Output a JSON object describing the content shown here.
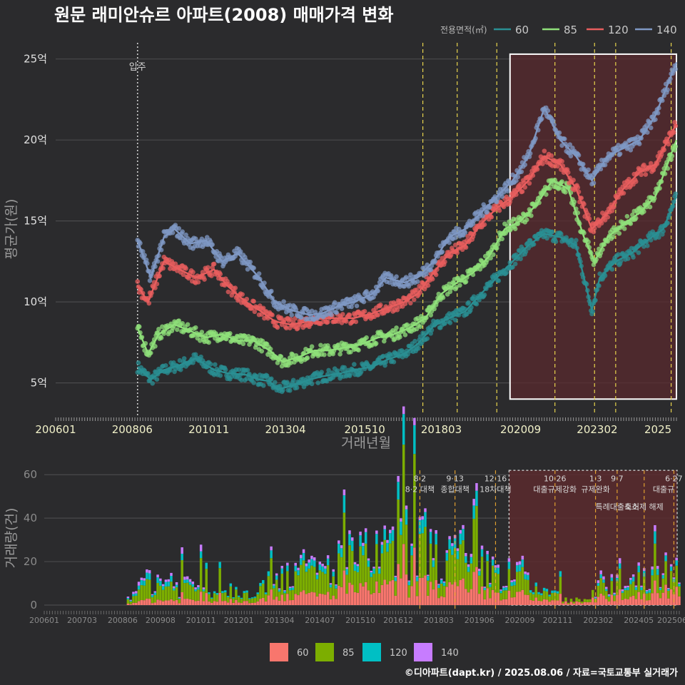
{
  "title": "원문 래미안슈르 아파트(2008) 매매가격 변화",
  "footer": "©디아파트(dapt.kr) / 2025.08.06 / 자료=국토교통부 실거래가",
  "colors": {
    "background": "#2b2b2d",
    "grid": "#4a4a4c",
    "policy_line": "#e8d44d",
    "highlight_fill": "#5a2a2e",
    "movein_line": "#d0d0d0"
  },
  "chart_data": [
    {
      "type": "line",
      "title": "원문 래미안슈르 아파트(2008) 매매가격 변화",
      "xlabel": "거래년월",
      "ylabel": "평균가(원)",
      "x_ticks": [
        "200601",
        "200806",
        "201011",
        "201304",
        "201510",
        "201803",
        "202009",
        "202302",
        "2025"
      ],
      "y_ticks": [
        "5억",
        "10억",
        "15억",
        "20억",
        "25억"
      ],
      "y_tick_values": [
        5,
        10,
        15,
        20,
        25
      ],
      "ylim": [
        3,
        26
      ],
      "xlim": [
        "2006-01",
        "2025-08"
      ],
      "legend_title": "전용면적(㎡)",
      "legend_position": "top-right",
      "move_in_label": "입주",
      "move_in_date": "2008-08",
      "policy_dates": [
        "2017-08",
        "2018-09",
        "2019-12",
        "2021-10",
        "2023-01",
        "2023-09",
        "2025-06"
      ],
      "highlight": {
        "from": "2020-05",
        "to": "2025-08",
        "ymin": 4,
        "ymax": 25.3
      },
      "series": [
        {
          "name": "60",
          "color": "#2a8f93",
          "points": [
            [
              "2008-08",
              6.0
            ],
            [
              "2009-01",
              5.2
            ],
            [
              "2009-06",
              5.8
            ],
            [
              "2009-12",
              6.1
            ],
            [
              "2010-06",
              6.5
            ],
            [
              "2011-01",
              5.8
            ],
            [
              "2011-06",
              5.6
            ],
            [
              "2012-01",
              5.5
            ],
            [
              "2012-06",
              5.2
            ],
            [
              "2012-10",
              5.1
            ],
            [
              "2013-01",
              4.6
            ],
            [
              "2013-06",
              4.8
            ],
            [
              "2014-01",
              5.2
            ],
            [
              "2014-06",
              5.4
            ],
            [
              "2015-01",
              5.6
            ],
            [
              "2015-06",
              5.8
            ],
            [
              "2016-01",
              6.0
            ],
            [
              "2016-06",
              6.4
            ],
            [
              "2017-01",
              6.8
            ],
            [
              "2017-06",
              7.4
            ],
            [
              "2017-12",
              8.5
            ],
            [
              "2018-06",
              9.0
            ],
            [
              "2018-12",
              9.4
            ],
            [
              "2019-06",
              10.5
            ],
            [
              "2019-12",
              11.5
            ],
            [
              "2020-06",
              12.5
            ],
            [
              "2020-12",
              13.5
            ],
            [
              "2021-06",
              14.2
            ],
            [
              "2021-12",
              14.0
            ],
            [
              "2022-06",
              13.5
            ],
            [
              "2022-12",
              9.5
            ],
            [
              "2023-03",
              11.5
            ],
            [
              "2023-09",
              12.5
            ],
            [
              "2024-03",
              13.0
            ],
            [
              "2024-09",
              13.8
            ],
            [
              "2025-03",
              14.5
            ],
            [
              "2025-08",
              16.5
            ]
          ]
        },
        {
          "name": "85",
          "color": "#8fe07a",
          "points": [
            [
              "2008-08",
              8.4
            ],
            [
              "2008-12",
              6.8
            ],
            [
              "2009-04",
              8.0
            ],
            [
              "2009-10",
              8.6
            ],
            [
              "2010-04",
              8.2
            ],
            [
              "2010-10",
              7.8
            ],
            [
              "2011-04",
              8.0
            ],
            [
              "2011-10",
              7.6
            ],
            [
              "2012-04",
              7.6
            ],
            [
              "2012-10",
              7.0
            ],
            [
              "2013-03",
              6.3
            ],
            [
              "2013-09",
              6.6
            ],
            [
              "2014-03",
              7.0
            ],
            [
              "2014-09",
              7.0
            ],
            [
              "2015-03",
              7.2
            ],
            [
              "2015-09",
              7.4
            ],
            [
              "2016-03",
              7.8
            ],
            [
              "2016-09",
              8.0
            ],
            [
              "2017-03",
              8.4
            ],
            [
              "2017-09",
              9.0
            ],
            [
              "2018-03",
              10.5
            ],
            [
              "2018-09",
              11.2
            ],
            [
              "2019-03",
              11.8
            ],
            [
              "2019-09",
              12.8
            ],
            [
              "2020-03",
              14.5
            ],
            [
              "2020-09",
              15.0
            ],
            [
              "2021-03",
              16.0
            ],
            [
              "2021-09",
              17.5
            ],
            [
              "2022-03",
              17.0
            ],
            [
              "2022-09",
              14.0
            ],
            [
              "2023-01",
              12.5
            ],
            [
              "2023-06",
              14.0
            ],
            [
              "2023-12",
              14.8
            ],
            [
              "2024-06",
              15.5
            ],
            [
              "2024-12",
              16.5
            ],
            [
              "2025-08",
              20.0
            ]
          ]
        },
        {
          "name": "120",
          "color": "#e85e5e",
          "points": [
            [
              "2008-08",
              11.0
            ],
            [
              "2008-12",
              10.0
            ],
            [
              "2009-06",
              12.5
            ],
            [
              "2009-12",
              12.0
            ],
            [
              "2010-06",
              11.5
            ],
            [
              "2011-01",
              12.0
            ],
            [
              "2011-06",
              11.0
            ],
            [
              "2012-01",
              10.0
            ],
            [
              "2012-06",
              9.5
            ],
            [
              "2012-12",
              8.8
            ],
            [
              "2013-06",
              8.6
            ],
            [
              "2014-01",
              8.8
            ],
            [
              "2014-06",
              9.0
            ],
            [
              "2015-01",
              9.0
            ],
            [
              "2015-06",
              9.0
            ],
            [
              "2016-01",
              9.3
            ],
            [
              "2016-06",
              9.6
            ],
            [
              "2017-01",
              10.0
            ],
            [
              "2017-06",
              10.5
            ],
            [
              "2017-12",
              11.8
            ],
            [
              "2018-06",
              13.0
            ],
            [
              "2018-12",
              13.5
            ],
            [
              "2019-06",
              14.8
            ],
            [
              "2019-12",
              15.8
            ],
            [
              "2020-06",
              16.5
            ],
            [
              "2020-12",
              17.5
            ],
            [
              "2021-06",
              19.0
            ],
            [
              "2021-12",
              18.5
            ],
            [
              "2022-06",
              17.0
            ],
            [
              "2022-12",
              14.5
            ],
            [
              "2023-06",
              15.5
            ],
            [
              "2023-12",
              17.0
            ],
            [
              "2024-06",
              18.0
            ],
            [
              "2024-12",
              18.5
            ],
            [
              "2025-08",
              21.0
            ]
          ]
        },
        {
          "name": "140",
          "color": "#7f98c4",
          "points": [
            [
              "2008-08",
              13.8
            ],
            [
              "2009-01",
              11.5
            ],
            [
              "2009-06",
              14.0
            ],
            [
              "2009-10",
              14.5
            ],
            [
              "2010-04",
              13.6
            ],
            [
              "2010-10",
              13.8
            ],
            [
              "2011-04",
              12.5
            ],
            [
              "2011-10",
              13.0
            ],
            [
              "2012-06",
              11.5
            ],
            [
              "2012-12",
              10.0
            ],
            [
              "2013-06",
              9.5
            ],
            [
              "2014-01",
              9.2
            ],
            [
              "2014-06",
              9.3
            ],
            [
              "2015-01",
              9.8
            ],
            [
              "2015-06",
              10.0
            ],
            [
              "2016-01",
              10.5
            ],
            [
              "2016-06",
              11.5
            ],
            [
              "2017-01",
              11.2
            ],
            [
              "2017-06",
              11.5
            ],
            [
              "2017-12",
              12.5
            ],
            [
              "2018-06",
              14.0
            ],
            [
              "2018-12",
              14.5
            ],
            [
              "2019-06",
              15.5
            ],
            [
              "2019-12",
              16.5
            ],
            [
              "2020-06",
              17.5
            ],
            [
              "2020-12",
              19.0
            ],
            [
              "2021-06",
              22.0
            ],
            [
              "2021-12",
              20.0
            ],
            [
              "2022-06",
              19.0
            ],
            [
              "2022-12",
              17.5
            ],
            [
              "2023-06",
              19.0
            ],
            [
              "2023-12",
              19.5
            ],
            [
              "2024-06",
              20.0
            ],
            [
              "2024-12",
              21.5
            ],
            [
              "2025-08",
              24.8
            ]
          ]
        }
      ]
    },
    {
      "type": "bar",
      "stacked": true,
      "xlabel": "",
      "ylabel": "거래량(건)",
      "x_ticks": [
        "200601",
        "200703",
        "200806",
        "200908",
        "201011",
        "201201",
        "201304",
        "201407",
        "201510",
        "201612",
        "201803",
        "201906",
        "202009",
        "202111",
        "202302",
        "202405",
        "202506"
      ],
      "y_ticks": [
        "0",
        "20",
        "40",
        "60"
      ],
      "y_tick_values": [
        0,
        20,
        40,
        60
      ],
      "ylim": [
        0,
        65
      ],
      "legend_position": "bottom",
      "legend": [
        "60",
        "85",
        "120",
        "140"
      ],
      "series_colors": [
        "#f8766d",
        "#7cae00",
        "#00bfc4",
        "#c77cff"
      ],
      "highlight": {
        "from": "2020-05",
        "to": "2025-08"
      },
      "policies": [
        {
          "date": "2017-08",
          "date_label": "8·2",
          "label": "8·2 대책"
        },
        {
          "date": "2018-09",
          "date_label": "9·13",
          "label": "종합대책"
        },
        {
          "date": "2019-12",
          "date_label": "12·16",
          "label": "18차대책"
        },
        {
          "date": "2021-10",
          "date_label": "10·26",
          "label": "대출규제강화"
        },
        {
          "date": "2023-01",
          "date_label": "1·3",
          "label": "규제완화"
        },
        {
          "date": "2023-09",
          "date_label": "9·7",
          "label": "특례대출축소"
        },
        {
          "date": "2024-07",
          "date_label": "",
          "label": "토허제 해제"
        },
        {
          "date": "2025-06",
          "date_label": "6·27",
          "label": "대출규"
        }
      ],
      "monthly_totals_note": "annual average monthly volume",
      "annual_volume": [
        {
          "year": 2008,
          "v60": 1,
          "v85": 3,
          "v120": 1,
          "v140": 1
        },
        {
          "year": 2009,
          "v60": 2,
          "v85": 6,
          "v120": 2,
          "v140": 1
        },
        {
          "year": 2010,
          "v60": 2,
          "v85": 5,
          "v120": 1,
          "v140": 1
        },
        {
          "year": 2011,
          "v60": 2,
          "v85": 4,
          "v120": 1,
          "v140": 0
        },
        {
          "year": 2012,
          "v60": 2,
          "v85": 4,
          "v120": 1,
          "v140": 0
        },
        {
          "year": 2013,
          "v60": 4,
          "v85": 8,
          "v120": 2,
          "v140": 1
        },
        {
          "year": 2014,
          "v60": 4,
          "v85": 8,
          "v120": 2,
          "v140": 1
        },
        {
          "year": 2015,
          "v60": 6,
          "v85": 10,
          "v120": 3,
          "v140": 1
        },
        {
          "year": 2016,
          "v60": 7,
          "v85": 11,
          "v120": 3,
          "v140": 1
        },
        {
          "year": 2017,
          "v60": 8,
          "v85": 13,
          "v120": 4,
          "v140": 1
        },
        {
          "year": 2018,
          "v60": 7,
          "v85": 10,
          "v120": 3,
          "v140": 1
        },
        {
          "year": 2019,
          "v60": 5,
          "v85": 8,
          "v120": 2,
          "v140": 1
        },
        {
          "year": 2020,
          "v60": 4,
          "v85": 6,
          "v120": 2,
          "v140": 1
        },
        {
          "year": 2021,
          "v60": 2,
          "v85": 3,
          "v120": 1,
          "v140": 0
        },
        {
          "year": 2022,
          "v60": 1,
          "v85": 1,
          "v120": 0,
          "v140": 0
        },
        {
          "year": 2023,
          "v60": 3,
          "v85": 4,
          "v120": 1,
          "v140": 1
        },
        {
          "year": 2024,
          "v60": 4,
          "v85": 6,
          "v120": 2,
          "v140": 1
        },
        {
          "year": 2025,
          "v60": 7,
          "v85": 8,
          "v120": 2,
          "v140": 1
        }
      ]
    }
  ]
}
